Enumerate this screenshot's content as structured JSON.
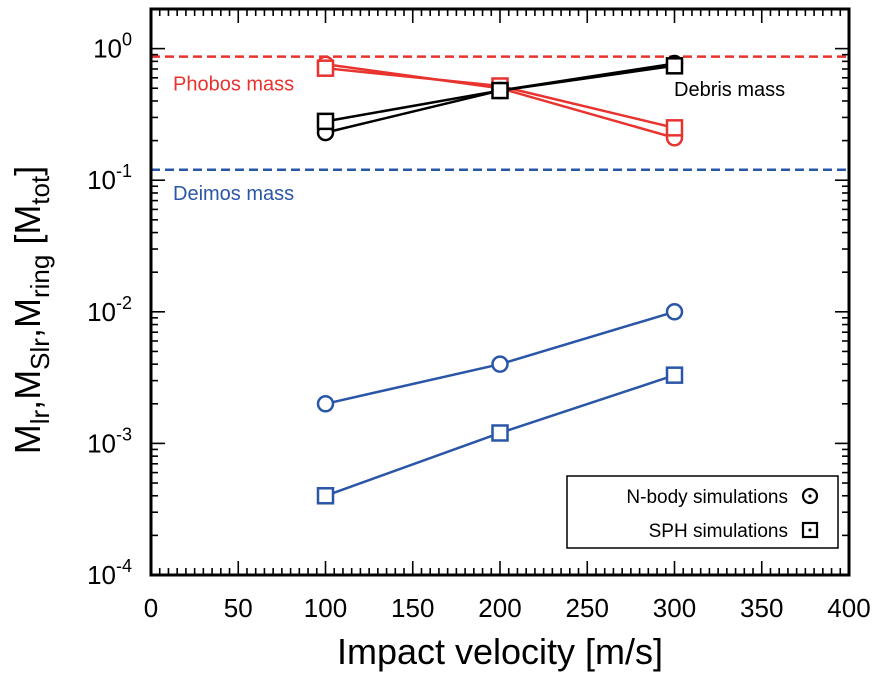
{
  "chart_data": {
    "type": "line",
    "xlabel": "Impact velocity [m/s]",
    "ylabel_parts": [
      {
        "text": "M",
        "sub": false
      },
      {
        "text": "lr",
        "sub": true
      },
      {
        "text": ",M",
        "sub": false
      },
      {
        "text": "Slr",
        "sub": true
      },
      {
        "text": ",M",
        "sub": false
      },
      {
        "text": "ring",
        "sub": true
      },
      {
        "text": " [M",
        "sub": false
      },
      {
        "text": "tot",
        "sub": true
      },
      {
        "text": "]",
        "sub": false
      }
    ],
    "xlim": [
      0,
      400
    ],
    "ylim": [
      0.0001,
      2
    ],
    "yscale": "log",
    "x_ticks": [
      "0",
      "50",
      "100",
      "150",
      "200",
      "250",
      "300",
      "350",
      "400"
    ],
    "y_ticks": [
      {
        "value": 1,
        "base": "10",
        "exp": "0"
      },
      {
        "value": 0.1,
        "base": "10",
        "exp": "-1"
      },
      {
        "value": 0.01,
        "base": "10",
        "exp": "-2"
      },
      {
        "value": 0.001,
        "base": "10",
        "exp": "-3"
      },
      {
        "value": 0.0001,
        "base": "10",
        "exp": "-4"
      }
    ],
    "hlines": [
      {
        "label": "Phobos mass",
        "y": 0.87,
        "color": "#e8332f"
      },
      {
        "label": "Deimos mass",
        "y": 0.12,
        "color": "#2a56a8"
      }
    ],
    "annotations": [
      {
        "text": "Debris mass",
        "color": "#000000"
      }
    ],
    "series": [
      {
        "group": "phobos",
        "marker": "circle",
        "color": "#e8332f",
        "x": [
          100,
          200,
          300
        ],
        "y": [
          0.76,
          0.5,
          0.21
        ]
      },
      {
        "group": "phobos",
        "marker": "square",
        "color": "#e8332f",
        "x": [
          100,
          200,
          300
        ],
        "y": [
          0.71,
          0.52,
          0.25
        ]
      },
      {
        "group": "debris",
        "marker": "circle",
        "color": "#000000",
        "x": [
          100,
          200,
          300
        ],
        "y": [
          0.23,
          0.48,
          0.77
        ]
      },
      {
        "group": "debris",
        "marker": "square",
        "color": "#000000",
        "x": [
          100,
          200,
          300
        ],
        "y": [
          0.28,
          0.48,
          0.74
        ]
      },
      {
        "group": "ring",
        "marker": "circle",
        "color": "#2a56a8",
        "x": [
          100,
          200,
          300
        ],
        "y": [
          0.002,
          0.004,
          0.01
        ]
      },
      {
        "group": "ring",
        "marker": "square",
        "color": "#2a56a8",
        "x": [
          100,
          200,
          300
        ],
        "y": [
          0.0004,
          0.0012,
          0.0033
        ]
      }
    ],
    "legend": {
      "position": "bottom-right",
      "entries": [
        {
          "label": "N-body simulations",
          "marker": "circle-dot"
        },
        {
          "label": "SPH simulations",
          "marker": "square-dot"
        }
      ]
    },
    "grid": false
  }
}
